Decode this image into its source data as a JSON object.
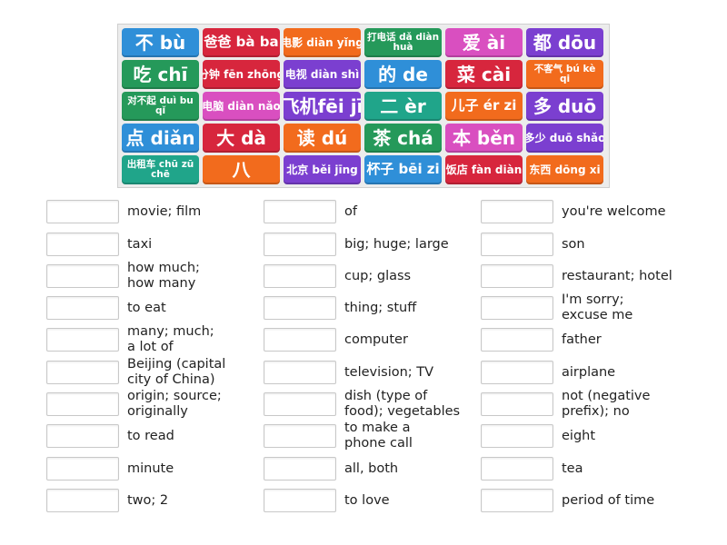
{
  "colors": {
    "blue": "#2f8fd8",
    "red": "#d7263d",
    "orange": "#f26b1d",
    "green": "#25995a",
    "pink": "#d94fc0",
    "purple": "#7b3fd0",
    "teal": "#20a58a"
  },
  "tiles": [
    {
      "label": "不 bù",
      "color": "#2f8fd8",
      "size": "big"
    },
    {
      "label": "爸爸 bà ba",
      "color": "#d7263d",
      "size": "med"
    },
    {
      "label": "电影 diàn yǐng",
      "color": "#f26b1d",
      "size": "small"
    },
    {
      "label": "打电话 dǎ diàn huà",
      "color": "#25995a",
      "size": "tiny"
    },
    {
      "label": "爱 ài",
      "color": "#d94fc0",
      "size": "big"
    },
    {
      "label": "都 dōu",
      "color": "#7b3fd0",
      "size": "big"
    },
    {
      "label": "吃 chī",
      "color": "#25995a",
      "size": "big"
    },
    {
      "label": "分钟 fēn zhōng",
      "color": "#d7263d",
      "size": "small"
    },
    {
      "label": "电视 diàn shì",
      "color": "#7b3fd0",
      "size": "small"
    },
    {
      "label": "的 de",
      "color": "#2f8fd8",
      "size": "big"
    },
    {
      "label": "菜 cài",
      "color": "#d7263d",
      "size": "big"
    },
    {
      "label": "不客气 bú kè qi",
      "color": "#f26b1d",
      "size": "tiny"
    },
    {
      "label": "对不起 duì bu qǐ",
      "color": "#25995a",
      "size": "tiny"
    },
    {
      "label": "电脑 diàn nǎo",
      "color": "#d94fc0",
      "size": "small"
    },
    {
      "label": "飞机fēi jī",
      "color": "#7b3fd0",
      "size": "big"
    },
    {
      "label": "二 èr",
      "color": "#20a58a",
      "size": "big"
    },
    {
      "label": "儿子 ér zi",
      "color": "#f26b1d",
      "size": "med"
    },
    {
      "label": "多 duō",
      "color": "#7b3fd0",
      "size": "big"
    },
    {
      "label": "点 diǎn",
      "color": "#2f8fd8",
      "size": "big"
    },
    {
      "label": "大 dà",
      "color": "#d7263d",
      "size": "big"
    },
    {
      "label": "读 dú",
      "color": "#f26b1d",
      "size": "big"
    },
    {
      "label": "茶 chá",
      "color": "#25995a",
      "size": "big"
    },
    {
      "label": "本 běn",
      "color": "#d94fc0",
      "size": "big"
    },
    {
      "label": "多少 duō shǎo",
      "color": "#7b3fd0",
      "size": "small"
    },
    {
      "label": "出租车 chū zū chē",
      "color": "#20a58a",
      "size": "tiny"
    },
    {
      "label": "八",
      "color": "#f26b1d",
      "size": "big"
    },
    {
      "label": "北京 běi jīng",
      "color": "#7b3fd0",
      "size": "small"
    },
    {
      "label": "杯子 bēi zi",
      "color": "#2f8fd8",
      "size": "med"
    },
    {
      "label": "饭店 fàn diàn",
      "color": "#d7263d",
      "size": "small"
    },
    {
      "label": "东西 dōng xi",
      "color": "#f26b1d",
      "size": "small"
    }
  ],
  "clues": {
    "col1": [
      "movie; film",
      "taxi",
      "how much;\nhow many",
      "to eat",
      "many; much;\na lot of",
      "Beijing (capital\ncity of China)",
      "origin; source;\noriginally",
      "to read",
      "minute",
      "two; 2"
    ],
    "col2": [
      "of",
      "big; huge; large",
      "cup; glass",
      "thing; stuff",
      "computer",
      "television; TV",
      "dish (type of\nfood); vegetables",
      "to make a\nphone call",
      "all, both",
      "to love"
    ],
    "col3": [
      "you're welcome",
      "son",
      "restaurant; hotel",
      "I'm sorry;\nexcuse me",
      "father",
      "airplane",
      "not (negative\nprefix); no",
      "eight",
      "tea",
      "period of time"
    ]
  }
}
